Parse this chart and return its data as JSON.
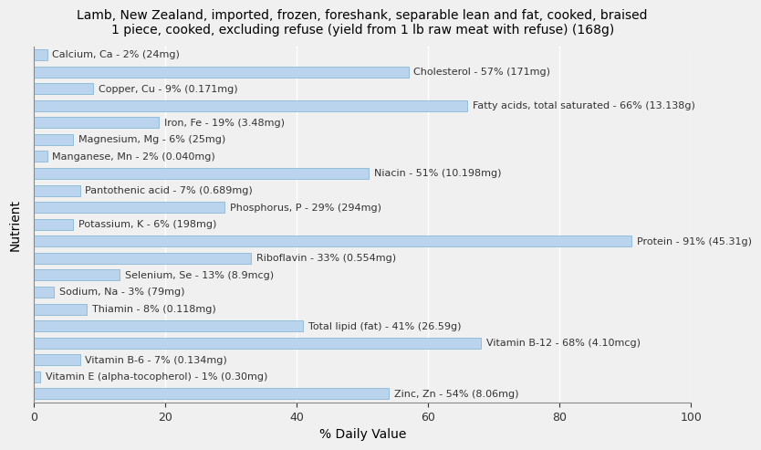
{
  "title": "Lamb, New Zealand, imported, frozen, foreshank, separable lean and fat, cooked, braised\n1 piece, cooked, excluding refuse (yield from 1 lb raw meat with refuse) (168g)",
  "xlabel": "% Daily Value",
  "ylabel": "Nutrient",
  "background_color": "#f0f0f0",
  "bar_color": "#bad4ed",
  "bar_edge_color": "#7aafd4",
  "nutrients": [
    {
      "label": "Calcium, Ca - 2% (24mg)",
      "value": 2
    },
    {
      "label": "Cholesterol - 57% (171mg)",
      "value": 57
    },
    {
      "label": "Copper, Cu - 9% (0.171mg)",
      "value": 9
    },
    {
      "label": "Fatty acids, total saturated - 66% (13.138g)",
      "value": 66
    },
    {
      "label": "Iron, Fe - 19% (3.48mg)",
      "value": 19
    },
    {
      "label": "Magnesium, Mg - 6% (25mg)",
      "value": 6
    },
    {
      "label": "Manganese, Mn - 2% (0.040mg)",
      "value": 2
    },
    {
      "label": "Niacin - 51% (10.198mg)",
      "value": 51
    },
    {
      "label": "Pantothenic acid - 7% (0.689mg)",
      "value": 7
    },
    {
      "label": "Phosphorus, P - 29% (294mg)",
      "value": 29
    },
    {
      "label": "Potassium, K - 6% (198mg)",
      "value": 6
    },
    {
      "label": "Protein - 91% (45.31g)",
      "value": 91
    },
    {
      "label": "Riboflavin - 33% (0.554mg)",
      "value": 33
    },
    {
      "label": "Selenium, Se - 13% (8.9mcg)",
      "value": 13
    },
    {
      "label": "Sodium, Na - 3% (79mg)",
      "value": 3
    },
    {
      "label": "Thiamin - 8% (0.118mg)",
      "value": 8
    },
    {
      "label": "Total lipid (fat) - 41% (26.59g)",
      "value": 41
    },
    {
      "label": "Vitamin B-12 - 68% (4.10mcg)",
      "value": 68
    },
    {
      "label": "Vitamin B-6 - 7% (0.134mg)",
      "value": 7
    },
    {
      "label": "Vitamin E (alpha-tocopherol) - 1% (0.30mg)",
      "value": 1
    },
    {
      "label": "Zinc, Zn - 54% (8.06mg)",
      "value": 54
    }
  ],
  "xlim": [
    0,
    100
  ],
  "xticks": [
    0,
    20,
    40,
    60,
    80,
    100
  ],
  "title_fontsize": 10,
  "label_fontsize": 8,
  "tick_fontsize": 9,
  "axis_label_fontsize": 10
}
